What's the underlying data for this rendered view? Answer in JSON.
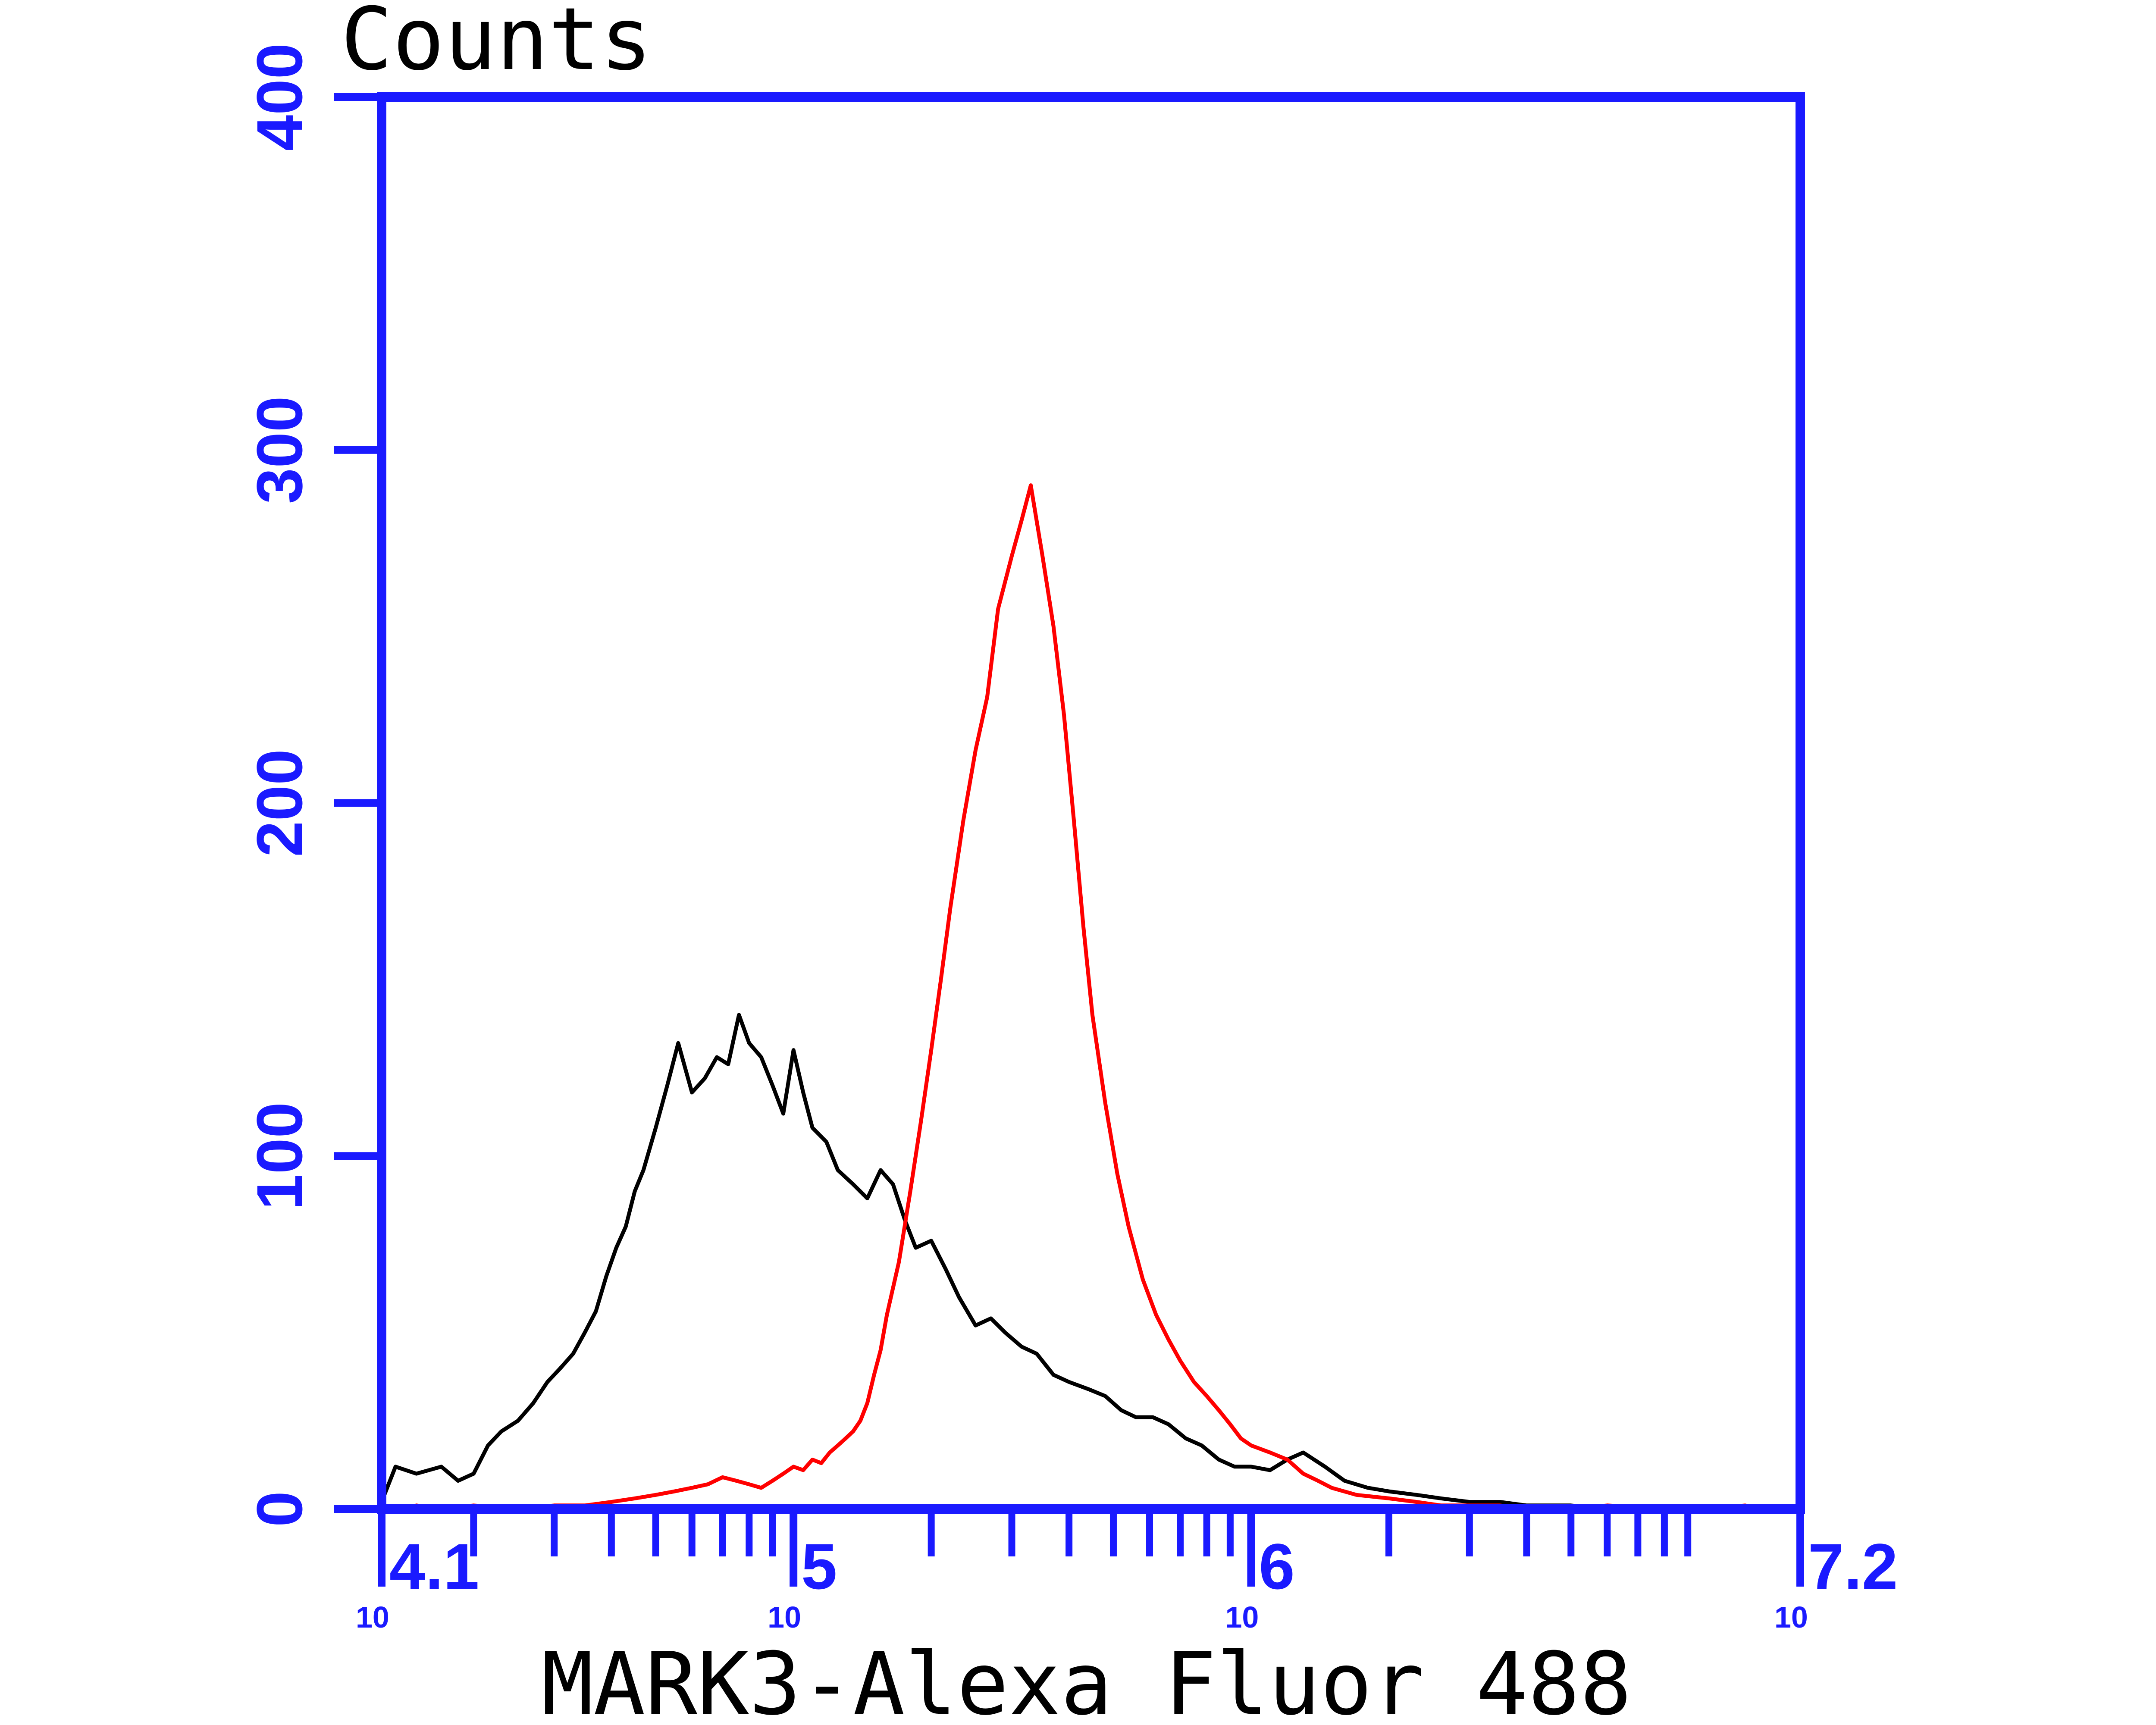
{
  "chart_data": {
    "type": "line",
    "title": "",
    "ylabel": "Counts",
    "xlabel": "MARK3-Alexa Fluor 488",
    "x_scale": "log",
    "xlim": [
      12589,
      15849000
    ],
    "ylim": [
      0,
      400
    ],
    "grid": false,
    "legend": "none",
    "x_ticks": [
      {
        "value": 12589,
        "base": "10",
        "exp": "4.1"
      },
      {
        "value": 100000,
        "base": "10",
        "exp": "5"
      },
      {
        "value": 1000000,
        "base": "10",
        "exp": "6"
      },
      {
        "value": 15849000,
        "base": "10",
        "exp": "7.2"
      }
    ],
    "y_ticks": [
      0,
      100,
      200,
      300,
      400
    ],
    "colors": {
      "axis": "#1a1aff",
      "black_series": "#000000",
      "red_series": "#ff0000"
    },
    "series": [
      {
        "color": "#000000",
        "x": [
          12589,
          13500,
          15000,
          17000,
          18500,
          20000,
          21500,
          23000,
          25000,
          27000,
          29000,
          31000,
          33000,
          35000,
          37000,
          39000,
          41000,
          43000,
          45000,
          47000,
          50000,
          53000,
          56000,
          60000,
          64000,
          68000,
          72000,
          76000,
          80000,
          85000,
          90000,
          95000,
          100000,
          105000,
          110000,
          118000,
          125000,
          135000,
          145000,
          155000,
          165000,
          175000,
          185000,
          200000,
          215000,
          230000,
          250000,
          270000,
          290000,
          315000,
          340000,
          370000,
          400000,
          440000,
          480000,
          520000,
          560000,
          610000,
          660000,
          720000,
          780000,
          850000,
          920000,
          1000000,
          1100000,
          1200000,
          1300000,
          1450000,
          1600000,
          1800000,
          2000000,
          2300000,
          2600000,
          3000000,
          3500000,
          4000000,
          5000000,
          6000000,
          8000000,
          10000000
        ],
        "y": [
          2,
          12,
          10,
          12,
          8,
          10,
          18,
          22,
          25,
          30,
          36,
          40,
          44,
          50,
          56,
          66,
          74,
          80,
          90,
          96,
          108,
          120,
          132,
          118,
          122,
          128,
          126,
          140,
          132,
          128,
          120,
          112,
          130,
          118,
          108,
          104,
          96,
          92,
          88,
          96,
          92,
          82,
          74,
          76,
          68,
          60,
          52,
          54,
          50,
          46,
          44,
          38,
          36,
          34,
          32,
          28,
          26,
          26,
          24,
          20,
          18,
          14,
          12,
          12,
          11,
          14,
          16,
          12,
          8,
          6,
          5,
          4,
          3,
          2,
          2,
          1,
          1,
          0,
          0,
          0
        ],
        "x_ext": [],
        "y_ext": []
      },
      {
        "color": "#ff0000",
        "x": [
          14000,
          15000,
          17000,
          20000,
          25000,
          30000,
          35000,
          40000,
          45000,
          50000,
          55000,
          60000,
          65000,
          70000,
          75000,
          80000,
          85000,
          90000,
          95000,
          100000,
          105000,
          110000,
          115000,
          120000,
          125000,
          130000,
          135000,
          140000,
          145000,
          150000,
          155000,
          160000,
          170000,
          180000,
          190000,
          200000,
          210000,
          220000,
          235000,
          250000,
          265000,
          280000,
          300000,
          315000,
          330000,
          350000,
          370000,
          390000,
          410000,
          430000,
          450000,
          480000,
          510000,
          540000,
          580000,
          620000,
          660000,
          700000,
          750000,
          800000,
          850000,
          900000,
          950000,
          1000000,
          1100000,
          1200000,
          1300000,
          1400000,
          1500000,
          1700000,
          2000000,
          2300000,
          2600000,
          3000000,
          3500000,
          4000000,
          5000000,
          6000000,
          8000000,
          10000000,
          12000000,
          13000000
        ],
        "y": [
          0,
          1,
          0,
          1,
          0,
          1,
          1,
          2,
          3,
          4,
          5,
          6,
          7,
          9,
          8,
          7,
          6,
          8,
          10,
          12,
          11,
          14,
          13,
          16,
          18,
          20,
          22,
          25,
          30,
          38,
          45,
          55,
          70,
          90,
          110,
          130,
          150,
          170,
          195,
          215,
          230,
          255,
          270,
          280,
          290,
          270,
          250,
          225,
          195,
          165,
          140,
          115,
          95,
          80,
          65,
          55,
          48,
          42,
          36,
          32,
          28,
          24,
          20,
          18,
          16,
          14,
          10,
          8,
          6,
          4,
          3,
          2,
          1,
          1,
          1,
          0,
          0,
          1,
          0,
          0,
          1,
          0
        ]
      }
    ]
  }
}
